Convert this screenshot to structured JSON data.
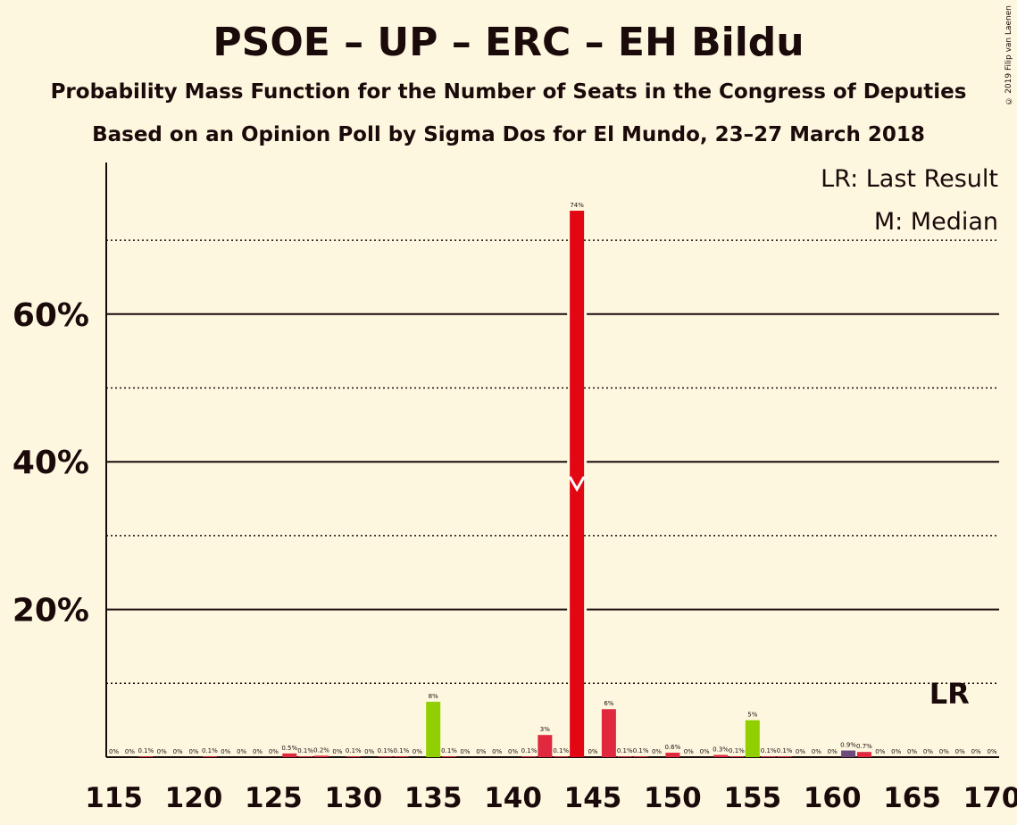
{
  "title": "PSOE – UP – ERC – EH Bildu",
  "subtitle1": "Probability Mass Function for the Number of Seats in the Congress of Deputies",
  "subtitle2": "Based on an Opinion Poll by Sigma Dos for El Mundo, 23–27 March 2018",
  "copyright": "© 2019 Filip van Laenen",
  "legend": {
    "lr": "LR: Last Result",
    "m": "M: Median"
  },
  "lr_label": "LR",
  "colors": {
    "red": "#e30613",
    "crimson": "#e0283e",
    "green": "#91cf00",
    "purple": "#6d4b7d",
    "background": "#fef7e0"
  },
  "chart_data": {
    "type": "bar",
    "x": [
      115,
      116,
      117,
      118,
      119,
      120,
      121,
      122,
      123,
      124,
      125,
      126,
      127,
      128,
      129,
      130,
      131,
      132,
      133,
      134,
      135,
      136,
      137,
      138,
      139,
      140,
      141,
      142,
      143,
      144,
      145,
      146,
      147,
      148,
      149,
      150,
      151,
      152,
      153,
      154,
      155,
      156,
      157,
      158,
      159,
      160,
      161,
      162,
      163,
      164,
      165,
      166,
      167,
      168,
      169,
      170
    ],
    "values": [
      0,
      0,
      0.1,
      0,
      0,
      0,
      0.1,
      0,
      0,
      0,
      0,
      0.5,
      0.1,
      0.2,
      0,
      0.1,
      0,
      0.1,
      0.1,
      0,
      7.5,
      0.1,
      0,
      0,
      0,
      0,
      0.1,
      3,
      0.1,
      74,
      0,
      6.5,
      0.1,
      0.1,
      0,
      0.6,
      0,
      0,
      0.3,
      0.1,
      5,
      0.1,
      0.1,
      0,
      0,
      0,
      0.9,
      0.7,
      0,
      0,
      0,
      0,
      0,
      0,
      0,
      0
    ],
    "labels": [
      "0%",
      "0%",
      "0.1%",
      "0%",
      "0%",
      "0%",
      "0.1%",
      "0%",
      "0%",
      "0%",
      "0%",
      "0.5%",
      "0.1%",
      "0.2%",
      "0%",
      "0.1%",
      "0%",
      "0.1%",
      "0.1%",
      "0%",
      "8%",
      "0.1%",
      "0%",
      "0%",
      "0%",
      "0%",
      "0.1%",
      "3%",
      "0.1%",
      "74%",
      "0%",
      "6%",
      "0.1%",
      "0.1%",
      "0%",
      "0.6%",
      "0%",
      "0%",
      "0.3%",
      "0.1%",
      "5%",
      "0.1%",
      "0.1%",
      "0%",
      "0%",
      "0%",
      "0.9%",
      "0.7%",
      "0%",
      "0%",
      "0%",
      "0%",
      "0%",
      "0%",
      "0%",
      "0%"
    ],
    "bar_colors": {
      "126": "crimson",
      "135": "green",
      "142": "crimson",
      "144": "red",
      "146": "crimson",
      "150": "crimson",
      "155": "green",
      "161": "purple",
      "162": "crimson"
    },
    "xticks": [
      115,
      120,
      125,
      130,
      135,
      140,
      145,
      150,
      155,
      160,
      165,
      170
    ],
    "xtick_labels": [
      "115",
      "120",
      "125",
      "130",
      "135",
      "140",
      "145",
      "150",
      "155",
      "160",
      "165",
      "170"
    ],
    "yticks": [
      20,
      40,
      60
    ],
    "ytick_labels": [
      "20%",
      "40%",
      "60%"
    ],
    "dotted_gridlines": [
      10,
      30,
      50,
      70
    ],
    "ylim": [
      0,
      80
    ],
    "median": 144,
    "last_result": 168,
    "grid": true,
    "legend_position": "top-right"
  }
}
